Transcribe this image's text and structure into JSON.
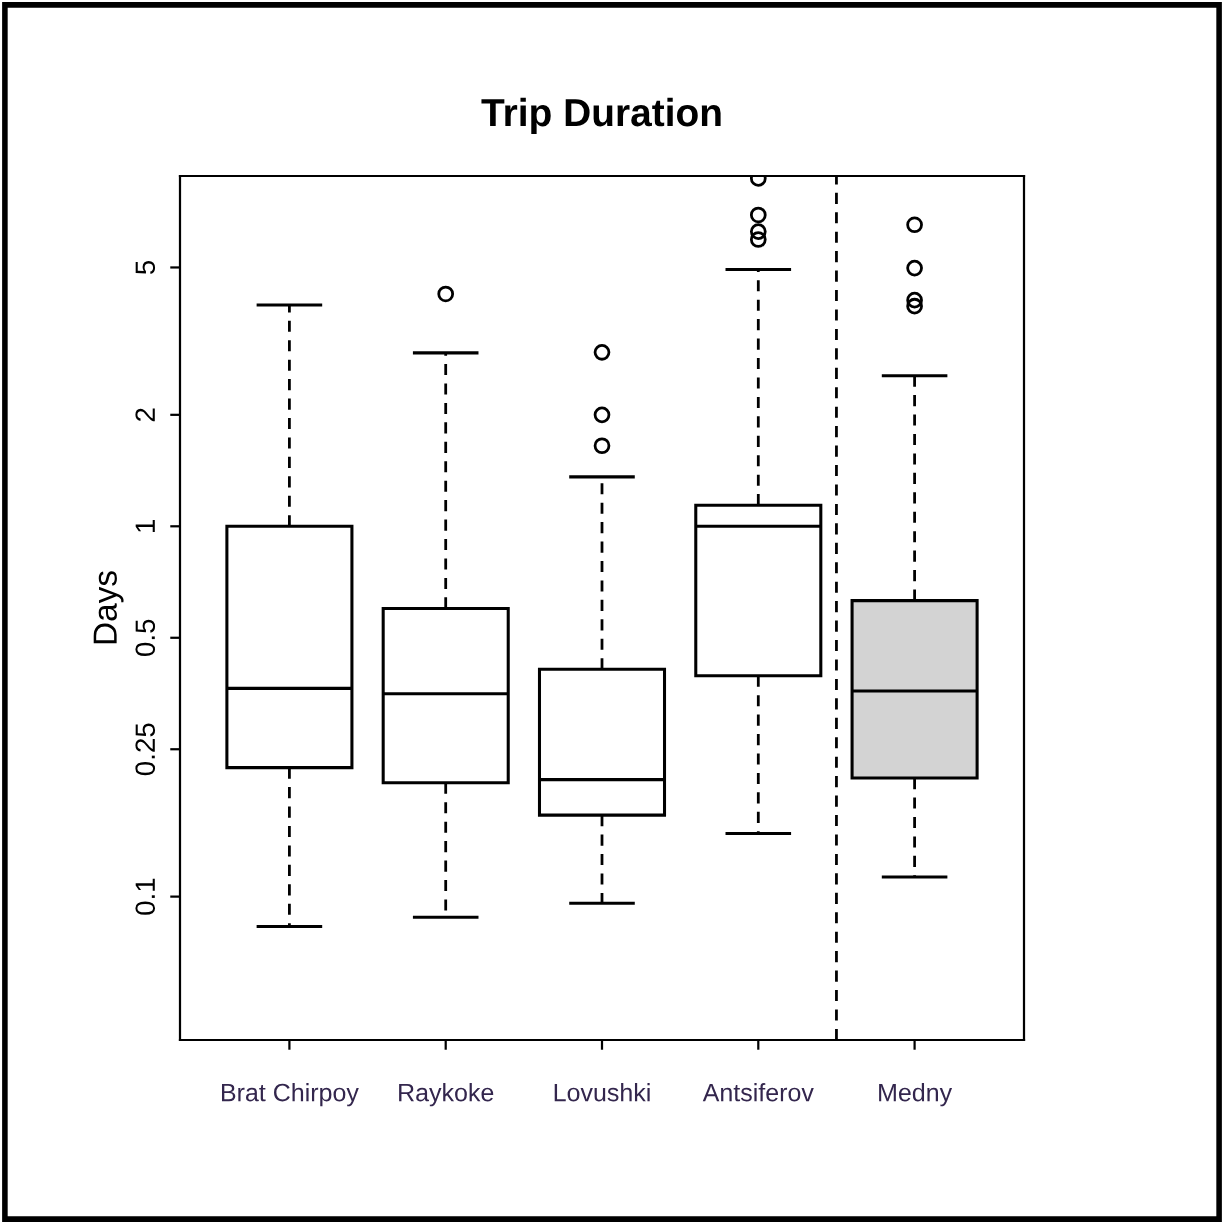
{
  "chart_data": {
    "type": "box",
    "title": "Trip Duration",
    "ylabel": "Days",
    "categories": [
      "Brat Chirpoy",
      "Raykoke",
      "Lovushki",
      "Antsiferov",
      "Medny"
    ],
    "colors": [
      "#ffffff",
      "#ffffff",
      "#ffffff",
      "#ffffff",
      "#d3d3d3"
    ],
    "boxes": [
      {
        "low": 0.083,
        "q1": 0.223,
        "median": 0.365,
        "q3": 1.0,
        "high": 3.96
      },
      {
        "low": 0.088,
        "q1": 0.203,
        "median": 0.353,
        "q3": 0.6,
        "high": 2.94,
        "outliers": [
          4.24
        ]
      },
      {
        "low": 0.096,
        "q1": 0.166,
        "median": 0.207,
        "q3": 0.411,
        "high": 1.36,
        "outliers": [
          1.65,
          2.0,
          2.95
        ]
      },
      {
        "low": 0.148,
        "q1": 0.395,
        "median": 1.0,
        "q3": 1.14,
        "high": 4.94,
        "outliers": [
          5.95,
          6.25,
          6.93,
          8.7
        ]
      },
      {
        "low": 0.113,
        "q1": 0.209,
        "median": 0.359,
        "q3": 0.63,
        "high": 2.55,
        "outliers": [
          3.93,
          4.08,
          4.98,
          6.52
        ]
      }
    ],
    "log": "y",
    "ylim": [
      0.041,
      8.83
    ],
    "yticks": [
      0.1,
      0.25,
      0.5,
      1,
      2,
      5
    ],
    "grid": false,
    "legend": false
  }
}
